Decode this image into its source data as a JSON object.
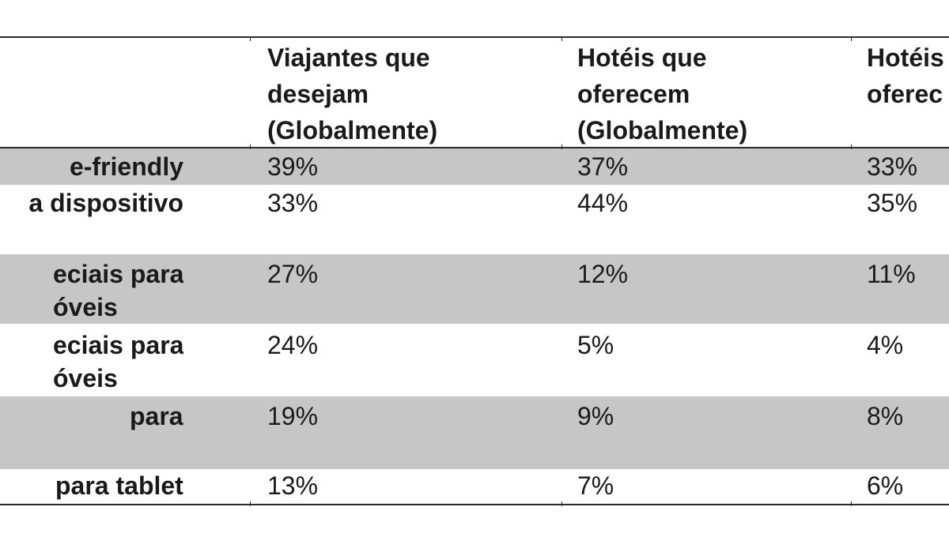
{
  "table": {
    "headers": [
      [
        "Viajantes que",
        "desejam",
        "(Globalmente)"
      ],
      [
        "Hotéis que",
        "oferecem",
        "(Globalmente)"
      ],
      [
        "Hotéis",
        "oferec"
      ]
    ],
    "rows": [
      {
        "label": [
          "e-friendly"
        ],
        "values": [
          "39%",
          "37%",
          "33%"
        ]
      },
      {
        "label": [
          "a dispositivo"
        ],
        "values": [
          "33%",
          "44%",
          "35%"
        ]
      },
      {
        "label": [
          "eciais para",
          "óveis"
        ],
        "values": [
          "27%",
          "12%",
          "11%"
        ]
      },
      {
        "label": [
          "eciais para",
          "óveis"
        ],
        "values": [
          "24%",
          "5%",
          "4%"
        ]
      },
      {
        "label": [
          "para"
        ],
        "values": [
          "19%",
          "9%",
          "8%"
        ]
      },
      {
        "label": [
          "para tablet"
        ],
        "values": [
          "13%",
          "7%",
          "6%"
        ]
      }
    ]
  }
}
